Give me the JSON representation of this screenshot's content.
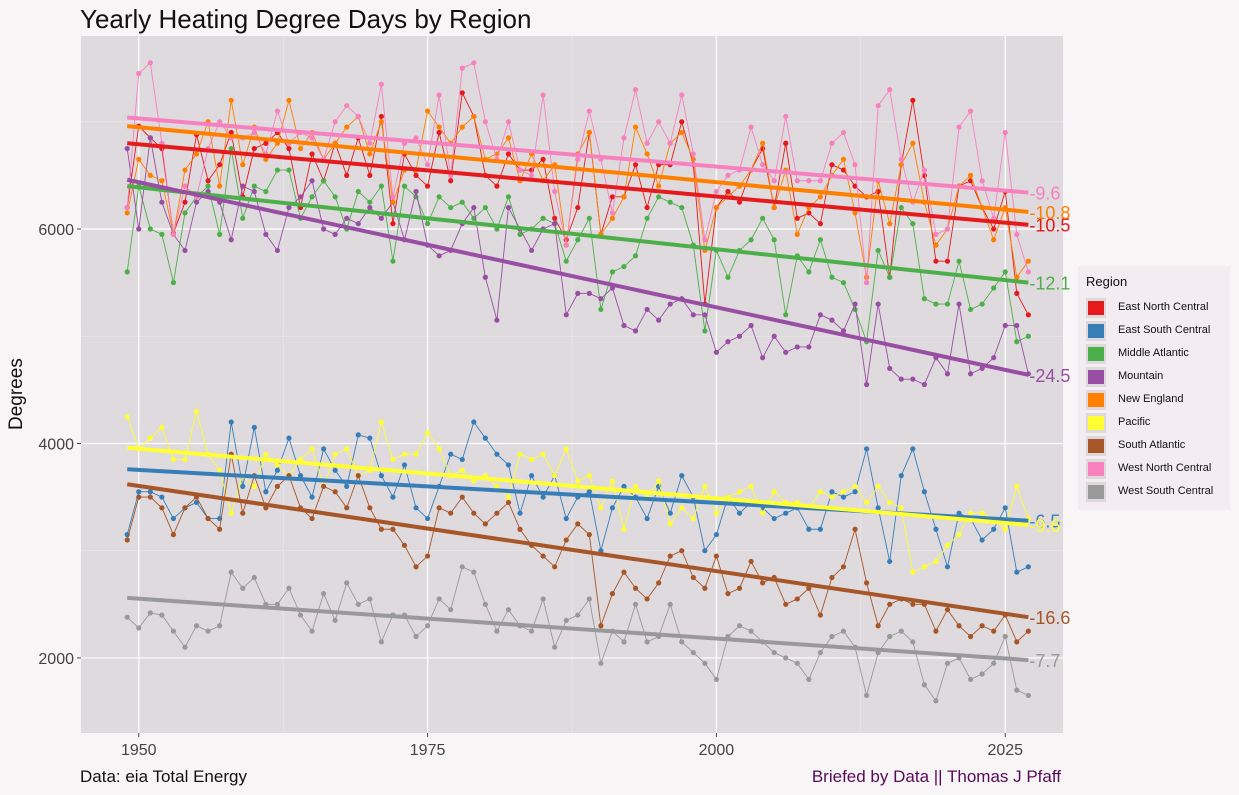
{
  "title": "Yearly Heating Degree Days by Region",
  "ylabel": "Degrees",
  "caption_left": "Data: eia Total Energy",
  "caption_right": "Briefed by Data || Thomas J Pfaff",
  "legend_title": "Region",
  "chart_data": {
    "type": "line",
    "title": "Yearly Heating Degree Days by Region",
    "xlabel": "",
    "ylabel": "Degrees",
    "xlim": [
      1945,
      2030
    ],
    "ylim": [
      1300,
      7800
    ],
    "x_ticks": [
      1950,
      1975,
      2000,
      2025
    ],
    "y_ticks": [
      2000,
      4000,
      6000
    ],
    "grid": true,
    "legend_position": "right",
    "x_start": 1949,
    "series": [
      {
        "name": "East North Central",
        "color": "#e41a1c",
        "trend": [
          6800,
          6040
        ],
        "trend_label": "-10.5",
        "values": [
          6200,
          6960,
          6850,
          6750,
          5960,
          6250,
          6880,
          6450,
          6600,
          6900,
          6300,
          6750,
          6800,
          6900,
          6750,
          6200,
          6700,
          6450,
          6800,
          6500,
          6850,
          6500,
          7050,
          6050,
          6700,
          6500,
          6400,
          6900,
          6450,
          7270,
          7050,
          6500,
          6400,
          6700,
          6550,
          6550,
          6650,
          6100,
          5900,
          6200,
          6900,
          5950,
          6300,
          6300,
          6600,
          6200,
          6600,
          6600,
          7000,
          6600,
          5300,
          6200,
          6350,
          6250,
          6550,
          6750,
          6200,
          6800,
          6100,
          6150,
          6050,
          6600,
          6550,
          6400,
          6300,
          6350,
          5550,
          6600,
          7200,
          6500,
          5700,
          5700,
          6400,
          6450,
          6200,
          6000,
          6350,
          5400,
          5200
        ]
      },
      {
        "name": "East South Central",
        "color": "#377eb8",
        "trend": [
          3760,
          3280
        ],
        "trend_label": "-6.5",
        "values": [
          3150,
          3550,
          3550,
          3500,
          3300,
          3400,
          3450,
          3300,
          3300,
          4200,
          3600,
          4150,
          3550,
          3750,
          4050,
          3700,
          3500,
          3950,
          3750,
          3600,
          4080,
          4050,
          3700,
          3500,
          3800,
          3400,
          3300,
          3600,
          3900,
          3850,
          4200,
          4050,
          3900,
          3800,
          3350,
          3700,
          3500,
          3700,
          3300,
          3500,
          3550,
          3000,
          3400,
          3600,
          3500,
          3300,
          3600,
          3350,
          3700,
          3500,
          3000,
          3150,
          3500,
          3350,
          3450,
          3400,
          3300,
          3350,
          3400,
          3200,
          3200,
          3550,
          3500,
          3550,
          3950,
          3400,
          2900,
          3700,
          3950,
          3550,
          3200,
          2850,
          3350,
          3300,
          3100,
          3200,
          3400,
          2800,
          2850
        ]
      },
      {
        "name": "Middle Atlantic",
        "color": "#4daf4a",
        "trend": [
          6400,
          5500
        ],
        "trend_label": "-12.1",
        "values": [
          5600,
          6400,
          6000,
          5950,
          5500,
          6150,
          6300,
          6400,
          5950,
          6750,
          6100,
          6400,
          6350,
          6550,
          6550,
          6100,
          6300,
          6450,
          6300,
          6000,
          6350,
          6250,
          6400,
          5700,
          6400,
          6300,
          6050,
          6300,
          6200,
          6250,
          6100,
          6200,
          6000,
          6300,
          5950,
          6000,
          6100,
          6050,
          5700,
          5900,
          6100,
          5250,
          5600,
          5650,
          5750,
          6100,
          6300,
          6250,
          6200,
          5850,
          5050,
          5800,
          5550,
          5800,
          5900,
          6100,
          5900,
          5200,
          5750,
          5600,
          5900,
          5550,
          5500,
          5250,
          4950,
          5800,
          5550,
          6200,
          6050,
          5350,
          5300,
          5300,
          5700,
          5250,
          5300,
          5450,
          5600,
          4950,
          5000
        ]
      },
      {
        "name": "Mountain",
        "color": "#984ea3",
        "trend": [
          6460,
          4640
        ],
        "trend_label": "-24.5",
        "values": [
          6750,
          6000,
          6850,
          6250,
          5950,
          5800,
          6250,
          6350,
          6250,
          5900,
          6400,
          6350,
          5950,
          5800,
          6200,
          6300,
          6450,
          6000,
          5950,
          6100,
          6050,
          6200,
          6100,
          6250,
          5900,
          6350,
          5850,
          5750,
          5800,
          6050,
          6200,
          5550,
          5150,
          6200,
          6000,
          5800,
          6000,
          6050,
          5200,
          5400,
          5400,
          5350,
          5450,
          5100,
          5050,
          5250,
          5150,
          5300,
          5350,
          5200,
          5200,
          4850,
          4950,
          5000,
          5100,
          4800,
          5000,
          4850,
          4900,
          4900,
          5200,
          5150,
          5050,
          5300,
          4550,
          5300,
          4700,
          4600,
          4600,
          4550,
          4800,
          4650,
          5300,
          4650,
          4700,
          4800,
          5100,
          5100,
          4650
        ]
      },
      {
        "name": "New England",
        "color": "#ff7f00",
        "trend": [
          6960,
          6160
        ],
        "trend_label": "-10.8",
        "values": [
          6150,
          6650,
          6500,
          6450,
          5950,
          6550,
          6700,
          7000,
          6400,
          7200,
          6600,
          6950,
          6650,
          6800,
          7200,
          6750,
          6900,
          6650,
          6800,
          6950,
          7050,
          6700,
          7000,
          6250,
          6550,
          6550,
          7100,
          6950,
          6800,
          6950,
          7050,
          6650,
          6700,
          6850,
          6450,
          6700,
          6450,
          6600,
          5850,
          6700,
          6900,
          5950,
          6100,
          6300,
          6950,
          6700,
          6400,
          6800,
          6900,
          6650,
          5800,
          6200,
          6300,
          6400,
          6550,
          6800,
          6200,
          6550,
          5950,
          6200,
          6300,
          6500,
          6650,
          6150,
          5550,
          6450,
          6050,
          6600,
          6800,
          6250,
          5850,
          6000,
          6400,
          6500,
          6200,
          5900,
          6200,
          5550,
          5700
        ]
      },
      {
        "name": "Pacific",
        "color": "#ffff33",
        "trend": [
          3960,
          3240
        ],
        "trend_label": "-9.6",
        "values": [
          4250,
          3950,
          4050,
          4150,
          3850,
          3850,
          4300,
          3900,
          3750,
          3350,
          3700,
          3600,
          3900,
          3800,
          3700,
          3850,
          3950,
          3600,
          3900,
          3950,
          3700,
          3750,
          4200,
          3850,
          3900,
          3900,
          4100,
          3950,
          3700,
          3750,
          3650,
          3700,
          3600,
          3500,
          3900,
          3850,
          3900,
          3700,
          3950,
          3650,
          3700,
          3400,
          3650,
          3200,
          3600,
          3500,
          3650,
          3250,
          3400,
          3300,
          3600,
          3350,
          3500,
          3550,
          3600,
          3350,
          3550,
          3450,
          3450,
          3400,
          3550,
          3500,
          3550,
          3600,
          3450,
          3600,
          3450,
          3400,
          2800,
          2850,
          2900,
          3050,
          3150,
          3350,
          3350,
          3300,
          3200,
          3600,
          3300
        ]
      },
      {
        "name": "South Atlantic",
        "color": "#a65628",
        "trend": [
          3620,
          2380
        ],
        "trend_label": "-16.6",
        "values": [
          3100,
          3500,
          3500,
          3400,
          3150,
          3400,
          3500,
          3300,
          3200,
          3900,
          3350,
          3700,
          3400,
          3600,
          3700,
          3400,
          3300,
          3600,
          3550,
          3400,
          3700,
          3400,
          3200,
          3200,
          3050,
          2850,
          2950,
          3400,
          3350,
          3500,
          3350,
          3250,
          3350,
          3450,
          3200,
          3050,
          2950,
          2850,
          3100,
          3250,
          3150,
          2300,
          2600,
          2800,
          2650,
          2550,
          2700,
          2950,
          3000,
          2750,
          2650,
          2950,
          2600,
          2650,
          2900,
          2700,
          2750,
          2500,
          2550,
          2650,
          2400,
          2750,
          2850,
          3200,
          2700,
          2300,
          2500,
          2550,
          2500,
          2500,
          2250,
          2450,
          2300,
          2200,
          2300,
          2250,
          2400,
          2150,
          2250
        ]
      },
      {
        "name": "West North Central",
        "color": "#f781bf",
        "trend": [
          7040,
          6340
        ],
        "trend_label": "-9.6",
        "values": [
          6200,
          7450,
          7550,
          6800,
          5950,
          6400,
          6300,
          6750,
          7000,
          6850,
          6850,
          6900,
          6700,
          7100,
          6800,
          6900,
          6850,
          6650,
          7000,
          7150,
          7050,
          6800,
          7350,
          6300,
          6800,
          6850,
          6600,
          7250,
          6500,
          7500,
          7550,
          7000,
          6650,
          7000,
          6550,
          6500,
          7250,
          6350,
          5850,
          6650,
          7100,
          6650,
          6150,
          6850,
          7300,
          6800,
          7000,
          6800,
          7250,
          6700,
          5900,
          6350,
          6500,
          6550,
          6950,
          6600,
          6450,
          7050,
          6450,
          6450,
          6450,
          6800,
          6900,
          6600,
          5500,
          7150,
          7300,
          6650,
          6250,
          6550,
          5950,
          6000,
          6950,
          7100,
          6450,
          6100,
          6900,
          5950,
          5600
        ]
      },
      {
        "name": "West South Central",
        "color": "#999999",
        "trend": [
          2560,
          1980
        ],
        "trend_label": "-7.7",
        "values": [
          2380,
          2280,
          2420,
          2400,
          2250,
          2100,
          2300,
          2250,
          2300,
          2800,
          2650,
          2750,
          2500,
          2500,
          2650,
          2400,
          2250,
          2600,
          2350,
          2700,
          2500,
          2550,
          2150,
          2400,
          2400,
          2200,
          2300,
          2550,
          2450,
          2850,
          2800,
          2500,
          2250,
          2450,
          2300,
          2250,
          2550,
          2100,
          2350,
          2400,
          2550,
          1950,
          2250,
          2150,
          2500,
          2150,
          2200,
          2500,
          2150,
          2050,
          1950,
          1800,
          2200,
          2300,
          2250,
          2150,
          2050,
          2000,
          1950,
          1800,
          2050,
          2200,
          2250,
          2100,
          1650,
          2050,
          2200,
          2250,
          2150,
          1750,
          1600,
          1950,
          2000,
          1800,
          1850,
          1950,
          2200,
          1700,
          1650
        ]
      }
    ]
  }
}
